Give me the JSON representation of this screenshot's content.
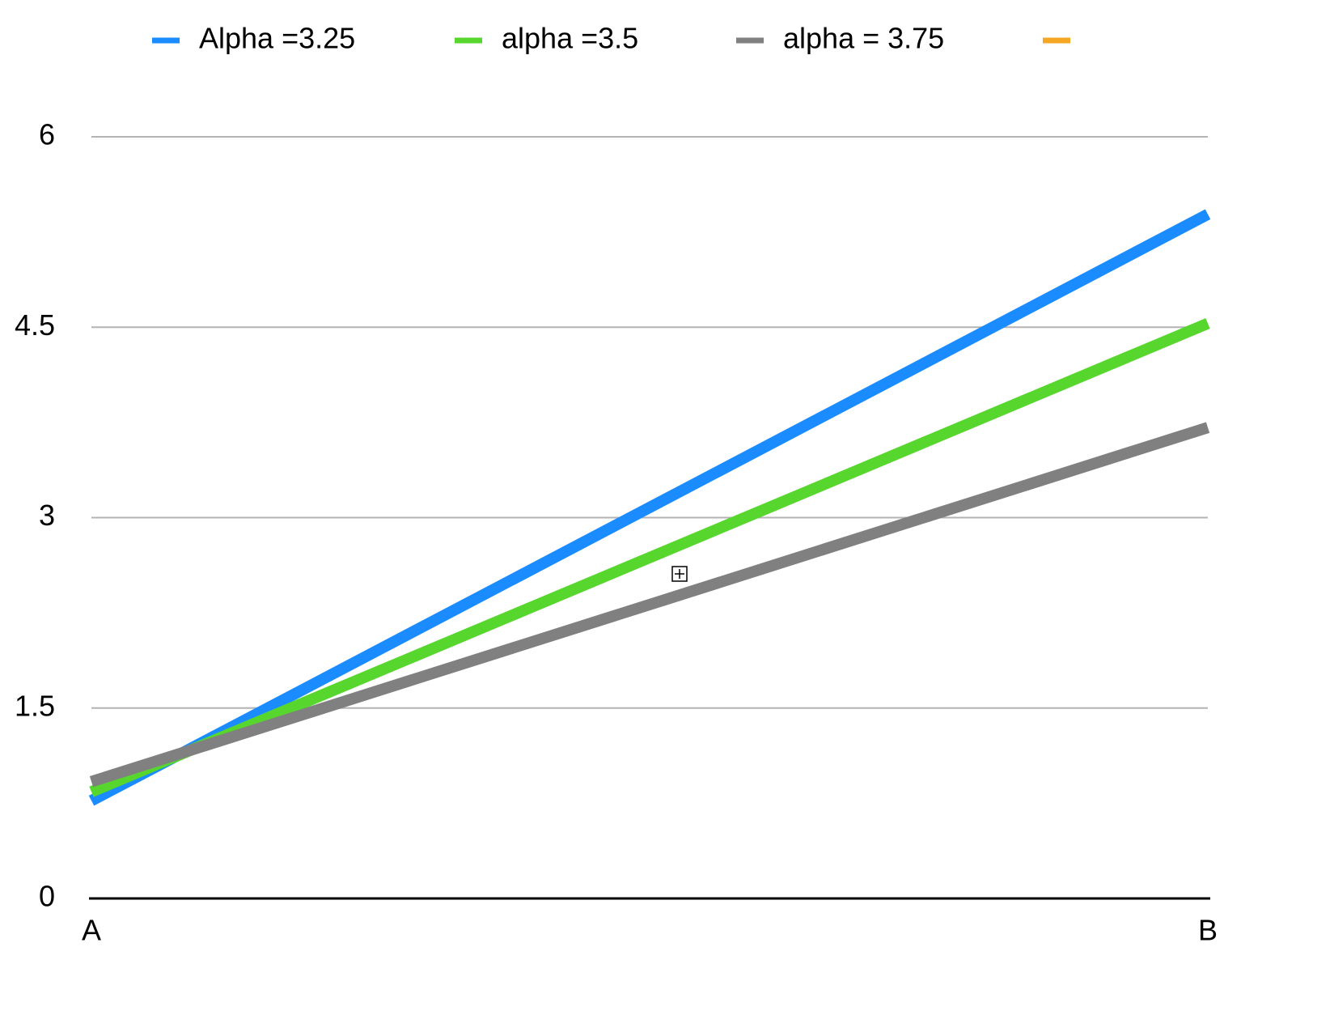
{
  "chart_data": {
    "type": "line",
    "categories": [
      "A",
      "B"
    ],
    "series": [
      {
        "name": "Alpha =3.25",
        "color": "#1a8cff",
        "values": [
          0.77,
          5.39
        ]
      },
      {
        "name": "alpha =3.5",
        "color": "#57d62e",
        "values": [
          0.84,
          4.53
        ]
      },
      {
        "name": "alpha = 3.75",
        "color": "#808080",
        "values": [
          0.92,
          3.71
        ]
      },
      {
        "color": "#f5a623",
        "values": [
          null,
          null
        ]
      }
    ],
    "ylim": [
      0,
      6
    ],
    "yticks": [
      0,
      1.5,
      3,
      4.5,
      6
    ],
    "grid": true,
    "legend": "top"
  }
}
